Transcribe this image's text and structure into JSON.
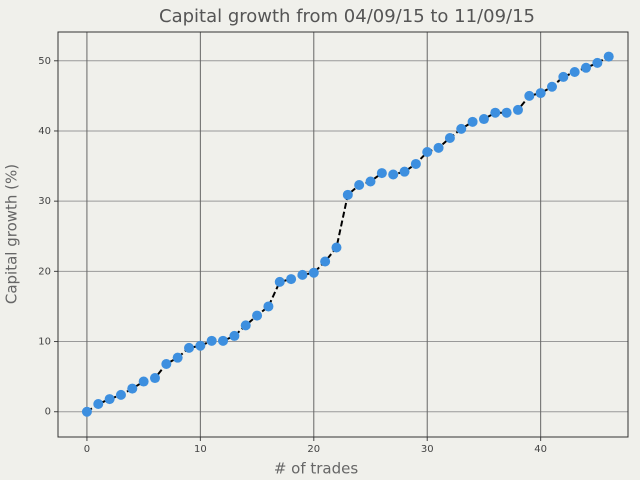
{
  "chart_data": {
    "type": "line",
    "title": "Capital growth from 04/09/15 to 11/09/15",
    "xlabel": "# of trades",
    "ylabel": "Capital growth (%)",
    "x": [
      0,
      1,
      2,
      3,
      4,
      5,
      6,
      7,
      8,
      9,
      10,
      11,
      12,
      13,
      14,
      15,
      16,
      17,
      18,
      19,
      20,
      21,
      22,
      23,
      24,
      25,
      26,
      27,
      28,
      29,
      30,
      31,
      32,
      33,
      34,
      35,
      36,
      37,
      38,
      39,
      40,
      41,
      42,
      43,
      44,
      45,
      46
    ],
    "values": [
      0,
      1.1,
      1.8,
      2.4,
      3.3,
      4.3,
      4.8,
      6.8,
      7.7,
      9.1,
      9.4,
      10.1,
      10.1,
      10.8,
      12.3,
      13.7,
      15.0,
      18.5,
      18.9,
      19.5,
      19.8,
      21.4,
      23.4,
      30.9,
      32.3,
      32.8,
      34.0,
      33.8,
      34.2,
      35.3,
      37.0,
      37.6,
      39.0,
      40.3,
      41.3,
      41.7,
      42.6,
      42.6,
      43.0,
      45.0,
      45.4,
      46.3,
      47.7,
      48.4,
      49.0,
      49.7,
      50.6
    ],
    "marker_color": "#3d8fdf",
    "line_color": "#000000",
    "line_dashed": true,
    "xlim": [
      -2.55,
      47.7
    ],
    "ylim": [
      -3.6,
      54.1
    ],
    "xticks": [
      0,
      10,
      20,
      30,
      40
    ],
    "yticks": [
      0,
      10,
      20,
      30,
      40,
      50
    ],
    "grid": true
  }
}
